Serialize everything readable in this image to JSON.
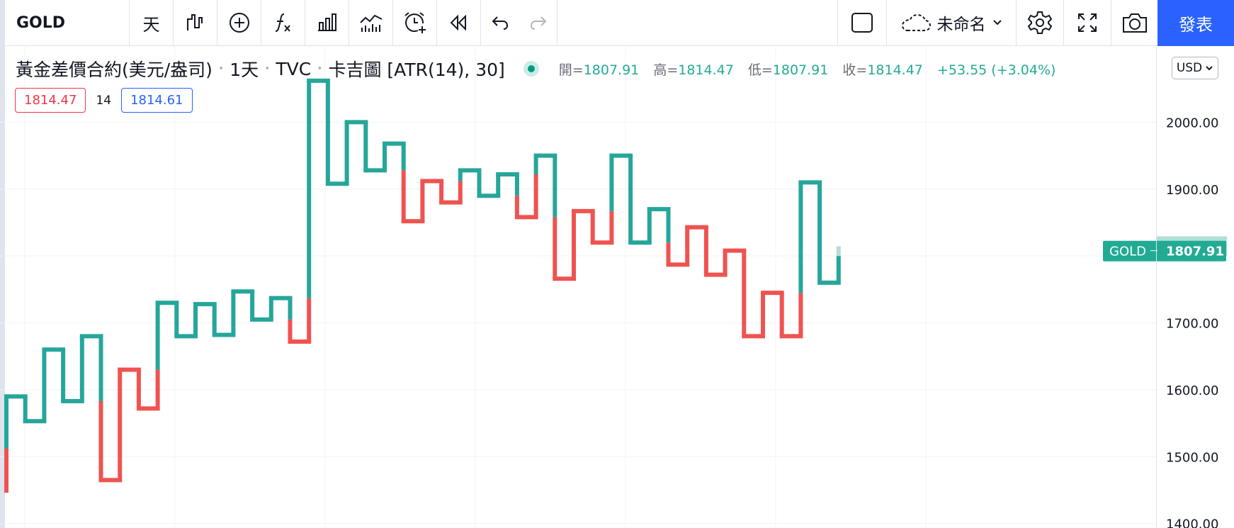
{
  "toolbar": {
    "symbol": "GOLD",
    "interval": "天",
    "layout_name": "未命名",
    "publish": "發表"
  },
  "legend": {
    "title": "黃金差價合約(美元/盎司)",
    "interval": "1天",
    "source": "TVC",
    "chart_style": "卡吉圖 [ATR(14), 30]",
    "open_label": "開=",
    "open": "1807.91",
    "high_label": "高=",
    "high": "1814.47",
    "low_label": "低=",
    "low": "1807.91",
    "close_label": "收=",
    "close": "1814.47",
    "change": "+53.55 (+3.04%)",
    "ind_left": "1814.47",
    "ind_mid": "14",
    "ind_right": "1814.61"
  },
  "currency": "USD",
  "colors": {
    "up": "#26a69a",
    "down": "#ef5350",
    "accent": "#2962ff",
    "pending": "#b2dfd6"
  },
  "chart_data": {
    "type": "line",
    "style": "kagi",
    "symbol_label": "GOLD",
    "y_ticks": [
      "2000.00",
      "1900.00",
      "1800.00",
      "1700.00",
      "1600.00",
      "1500.00",
      "1400.00"
    ],
    "y_range": [
      1400,
      2064
    ],
    "grid": true,
    "last_price_label": "1814.47",
    "symbol_price_label": "1807.91",
    "kagi_turning_points": [
      1446,
      1590,
      1553,
      1660,
      1583,
      1680,
      1465,
      1630,
      1572,
      1730,
      1680,
      1728,
      1682,
      1747,
      1705,
      1737,
      1672,
      2062,
      1908,
      2000,
      1928,
      1968,
      1852,
      1912,
      1880,
      1928,
      1890,
      1922,
      1858,
      1950,
      1766,
      1867,
      1820,
      1950,
      1820,
      1870,
      1787,
      1843,
      1772,
      1808,
      1680,
      1745,
      1680,
      1910,
      1760,
      1800
    ],
    "yang_threshold": 1590,
    "yin_threshold": 1512,
    "pending_segment": [
      1800,
      1814.47
    ]
  }
}
